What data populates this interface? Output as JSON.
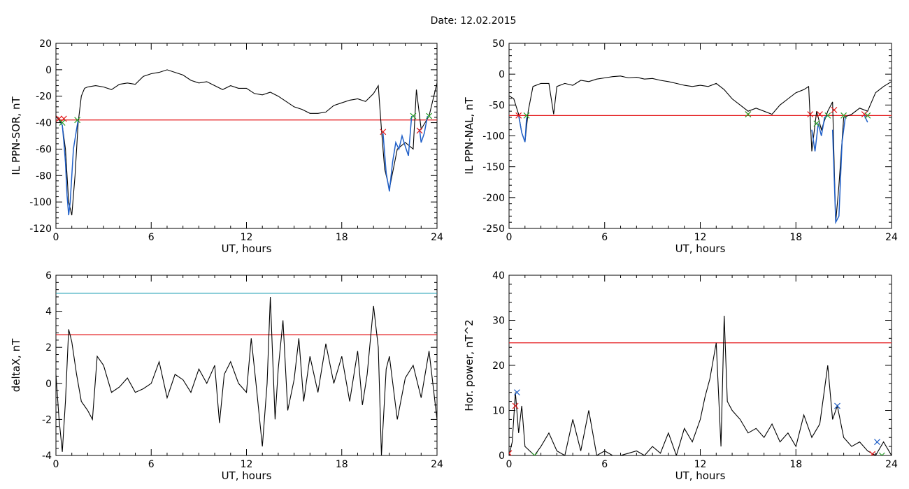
{
  "title": "Date:  12.02.2015",
  "chart_data": [
    {
      "type": "line",
      "xlabel": "UT, hours",
      "ylabel": "IL PPN-SOR, nT",
      "xlim": [
        0,
        24
      ],
      "ylim": [
        -120,
        20
      ],
      "xticks": [
        0,
        6,
        12,
        18,
        24
      ],
      "yticks": [
        20,
        0,
        -20,
        -40,
        -60,
        -80,
        -100,
        -120
      ],
      "threshold": -38,
      "threshold_color": "#e41a1c",
      "main": {
        "color": "#000000",
        "x": [
          0,
          0.2,
          0.4,
          0.6,
          0.8,
          1.0,
          1.2,
          1.4,
          1.6,
          1.8,
          2.0,
          2.5,
          3.0,
          3.5,
          4.0,
          4.5,
          5.0,
          5.5,
          6.0,
          6.5,
          7.0,
          7.5,
          8.0,
          8.5,
          9.0,
          9.5,
          10.0,
          10.5,
          11.0,
          11.5,
          12.0,
          12.5,
          13.0,
          13.5,
          14.0,
          14.5,
          15.0,
          15.5,
          16.0,
          16.5,
          17.0,
          17.5,
          18.0,
          18.5,
          19.0,
          19.5,
          20.0,
          20.3,
          20.5,
          20.7,
          21.0,
          21.5,
          22.0,
          22.5,
          22.7,
          23.0,
          23.5,
          24.0
        ],
        "y": [
          -35,
          -38,
          -42,
          -60,
          -100,
          -110,
          -80,
          -40,
          -20,
          -14,
          -13,
          -12,
          -13,
          -15,
          -11,
          -10,
          -11,
          -5,
          -3,
          -2,
          0,
          -2,
          -4,
          -8,
          -10,
          -9,
          -12,
          -15,
          -12,
          -14,
          -14,
          -18,
          -19,
          -17,
          -20,
          -24,
          -28,
          -30,
          -33,
          -33,
          -32,
          -27,
          -25,
          -23,
          -22,
          -24,
          -18,
          -12,
          -45,
          -75,
          -90,
          -60,
          -55,
          -60,
          -15,
          -45,
          -35,
          -10
        ]
      },
      "events": [
        {
          "x": [
            0.3,
            0.4,
            0.5,
            0.6,
            0.7,
            0.8,
            0.9,
            1.0,
            1.1,
            1.3,
            1.4
          ],
          "y": [
            -40,
            -42,
            -55,
            -70,
            -95,
            -110,
            -100,
            -80,
            -60,
            -45,
            -38
          ]
        },
        {
          "x": [
            20.6,
            20.8,
            21.0,
            21.2,
            21.4,
            21.6,
            21.8,
            22.0,
            22.2,
            22.4
          ],
          "y": [
            -48,
            -78,
            -92,
            -70,
            -55,
            -60,
            -50,
            -58,
            -65,
            -35
          ]
        },
        {
          "x": [
            22.9,
            23.0,
            23.2,
            23.4
          ],
          "y": [
            -45,
            -55,
            -48,
            -35
          ]
        }
      ],
      "events_color": "#1f5fc8",
      "markers": [
        {
          "x": 0.2,
          "y": -37,
          "color": "#e41a1c"
        },
        {
          "x": 0.5,
          "y": -37,
          "color": "#e41a1c"
        },
        {
          "x": 0.4,
          "y": -40,
          "color": "#2ca02c"
        },
        {
          "x": 1.35,
          "y": -38,
          "color": "#2ca02c"
        },
        {
          "x": 20.6,
          "y": -47,
          "color": "#e41a1c"
        },
        {
          "x": 22.5,
          "y": -35,
          "color": "#2ca02c"
        },
        {
          "x": 22.9,
          "y": -46,
          "color": "#e41a1c"
        },
        {
          "x": 23.5,
          "y": -35,
          "color": "#2ca02c"
        }
      ]
    },
    {
      "type": "line",
      "xlabel": "UT, hours",
      "ylabel": "IL PPN-NAL, nT",
      "xlim": [
        0,
        24
      ],
      "ylim": [
        -250,
        50
      ],
      "xticks": [
        0,
        6,
        12,
        18,
        24
      ],
      "yticks": [
        50,
        0,
        -50,
        -100,
        -150,
        -200,
        -250
      ],
      "threshold": -67,
      "threshold_color": "#e41a1c",
      "main": {
        "color": "#000000",
        "x": [
          0,
          0.3,
          0.6,
          0.8,
          1.0,
          1.2,
          1.5,
          2.0,
          2.5,
          2.8,
          3.0,
          3.5,
          4.0,
          4.5,
          5.0,
          5.5,
          6.0,
          6.5,
          7.0,
          7.5,
          8.0,
          8.5,
          9.0,
          9.5,
          10.0,
          10.5,
          11.0,
          11.5,
          12.0,
          12.5,
          13.0,
          13.5,
          14.0,
          14.5,
          15.0,
          15.5,
          16.0,
          16.5,
          17.0,
          17.5,
          18.0,
          18.5,
          18.8,
          19.0,
          19.3,
          19.6,
          20.0,
          20.3,
          20.5,
          20.7,
          21.0,
          21.5,
          22.0,
          22.5,
          23.0,
          23.5,
          24.0
        ],
        "y": [
          -35,
          -40,
          -65,
          -95,
          -110,
          -60,
          -20,
          -15,
          -15,
          -65,
          -20,
          -15,
          -18,
          -10,
          -12,
          -8,
          -6,
          -4,
          -3,
          -6,
          -5,
          -8,
          -7,
          -10,
          -12,
          -15,
          -18,
          -20,
          -18,
          -20,
          -15,
          -25,
          -40,
          -50,
          -60,
          -55,
          -60,
          -65,
          -50,
          -40,
          -30,
          -25,
          -20,
          -125,
          -60,
          -90,
          -60,
          -45,
          -240,
          -180,
          -70,
          -65,
          -55,
          -60,
          -30,
          -20,
          -12
        ]
      },
      "events": [
        {
          "x": [
            0.6,
            0.8,
            1.0,
            1.1
          ],
          "y": [
            -67,
            -95,
            -110,
            -70
          ]
        },
        {
          "x": [
            19.0,
            19.2,
            19.4,
            19.6,
            19.8,
            20.0
          ],
          "y": [
            -90,
            -125,
            -80,
            -100,
            -70,
            -67
          ]
        },
        {
          "x": [
            20.3,
            20.5,
            20.7,
            20.9,
            21.1
          ],
          "y": [
            -90,
            -240,
            -230,
            -110,
            -70
          ]
        },
        {
          "x": [
            22.3,
            22.5
          ],
          "y": [
            -67,
            -78
          ]
        }
      ],
      "events_color": "#1f5fc8",
      "markers": [
        {
          "x": 0.6,
          "y": -67,
          "color": "#e41a1c"
        },
        {
          "x": 1.1,
          "y": -67,
          "color": "#2ca02c"
        },
        {
          "x": 15.0,
          "y": -65,
          "color": "#e41a1c"
        },
        {
          "x": 15.0,
          "y": -65,
          "color": "#2ca02c"
        },
        {
          "x": 18.9,
          "y": -65,
          "color": "#e41a1c"
        },
        {
          "x": 19.3,
          "y": -80,
          "color": "#2ca02c"
        },
        {
          "x": 19.5,
          "y": -65,
          "color": "#e41a1c"
        },
        {
          "x": 20.0,
          "y": -67,
          "color": "#2ca02c"
        },
        {
          "x": 20.4,
          "y": -58,
          "color": "#e41a1c"
        },
        {
          "x": 21.0,
          "y": -67,
          "color": "#2ca02c"
        },
        {
          "x": 22.3,
          "y": -65,
          "color": "#e41a1c"
        },
        {
          "x": 22.5,
          "y": -67,
          "color": "#2ca02c"
        }
      ]
    },
    {
      "type": "line",
      "xlabel": "UT, hours",
      "ylabel": "deltaX, nT",
      "xlim": [
        0,
        24
      ],
      "ylim": [
        -4,
        6
      ],
      "xticks": [
        0,
        6,
        12,
        18,
        24
      ],
      "yticks": [
        6,
        4,
        2,
        0,
        -2,
        -4
      ],
      "lines": [
        {
          "y": 5.0,
          "color": "#1f9fb4"
        },
        {
          "y": 2.7,
          "color": "#e41a1c"
        }
      ],
      "main": {
        "color": "#000000",
        "x": [
          0,
          0.2,
          0.4,
          0.6,
          0.8,
          1.0,
          1.3,
          1.6,
          2.0,
          2.3,
          2.6,
          3.0,
          3.5,
          4.0,
          4.5,
          5.0,
          5.5,
          6.0,
          6.5,
          7.0,
          7.5,
          8.0,
          8.5,
          9.0,
          9.5,
          10.0,
          10.3,
          10.6,
          11.0,
          11.5,
          12.0,
          12.3,
          12.6,
          13.0,
          13.3,
          13.5,
          13.8,
          14.0,
          14.3,
          14.6,
          15.0,
          15.3,
          15.6,
          16.0,
          16.5,
          17.0,
          17.5,
          18.0,
          18.5,
          19.0,
          19.3,
          19.6,
          20.0,
          20.3,
          20.5,
          20.8,
          21.0,
          21.5,
          22.0,
          22.5,
          23.0,
          23.5,
          24.0
        ],
        "y": [
          0.5,
          -2.0,
          -3.8,
          -1.0,
          3.0,
          2.3,
          0.5,
          -1.0,
          -1.5,
          -2.0,
          1.5,
          1.0,
          -0.5,
          -0.2,
          0.3,
          -0.5,
          -0.3,
          0.0,
          1.2,
          -0.8,
          0.5,
          0.2,
          -0.5,
          0.8,
          0.0,
          1.0,
          -2.2,
          0.5,
          1.2,
          0.0,
          -0.5,
          2.5,
          0.0,
          -3.5,
          0.0,
          4.8,
          -2.0,
          0.8,
          3.5,
          -1.5,
          0.2,
          2.5,
          -1.0,
          1.5,
          -0.5,
          2.2,
          0.0,
          1.5,
          -1.0,
          1.8,
          -1.2,
          0.5,
          4.3,
          2.0,
          -4.0,
          0.8,
          1.5,
          -2.0,
          0.3,
          1.0,
          -0.8,
          1.8,
          -2.0
        ]
      },
      "events": [],
      "markers": []
    },
    {
      "type": "line",
      "xlabel": "UT, hours",
      "ylabel": "Hor. power, nT^2",
      "xlim": [
        0,
        24
      ],
      "ylim": [
        0,
        40
      ],
      "xticks": [
        0,
        6,
        12,
        18,
        24
      ],
      "yticks": [
        40,
        30,
        20,
        10,
        0
      ],
      "threshold": 25,
      "threshold_color": "#e41a1c",
      "main": {
        "color": "#000000",
        "x": [
          0,
          0.2,
          0.4,
          0.6,
          0.8,
          1.0,
          1.3,
          1.6,
          2.0,
          2.5,
          3.0,
          3.5,
          4.0,
          4.5,
          5.0,
          5.5,
          6.0,
          6.5,
          7.0,
          7.5,
          8.0,
          8.5,
          9.0,
          9.5,
          10.0,
          10.5,
          11.0,
          11.5,
          12.0,
          12.3,
          12.6,
          13.0,
          13.3,
          13.5,
          13.7,
          14.0,
          14.5,
          15.0,
          15.5,
          16.0,
          16.5,
          17.0,
          17.5,
          18.0,
          18.5,
          19.0,
          19.5,
          20.0,
          20.3,
          20.6,
          21.0,
          21.5,
          22.0,
          22.5,
          23.0,
          23.5,
          24.0
        ],
        "y": [
          0,
          3,
          14,
          5,
          11,
          2,
          1,
          0,
          2,
          5,
          1,
          0,
          8,
          1,
          10,
          0,
          1,
          0,
          0,
          0.5,
          1,
          0,
          2,
          0.5,
          5,
          0,
          6,
          3,
          8,
          13,
          17,
          25,
          2,
          31,
          12,
          10,
          8,
          5,
          6,
          4,
          7,
          3,
          5,
          2,
          9,
          4,
          7,
          20,
          8,
          11,
          4,
          2,
          3,
          1,
          0,
          3,
          0
        ]
      },
      "events": [],
      "markers": [
        {
          "x": 0.0,
          "y": 0.5,
          "color": "#e41a1c"
        },
        {
          "x": 0.4,
          "y": 11,
          "color": "#e41a1c"
        },
        {
          "x": 0.5,
          "y": 14,
          "color": "#1f5fc8"
        },
        {
          "x": 1.6,
          "y": 0,
          "color": "#2ca02c"
        },
        {
          "x": 20.6,
          "y": 11,
          "color": "#1f5fc8"
        },
        {
          "x": 22.8,
          "y": 0.3,
          "color": "#e41a1c"
        },
        {
          "x": 23.1,
          "y": 3,
          "color": "#1f5fc8"
        },
        {
          "x": 23.4,
          "y": 0,
          "color": "#2ca02c"
        }
      ]
    }
  ]
}
